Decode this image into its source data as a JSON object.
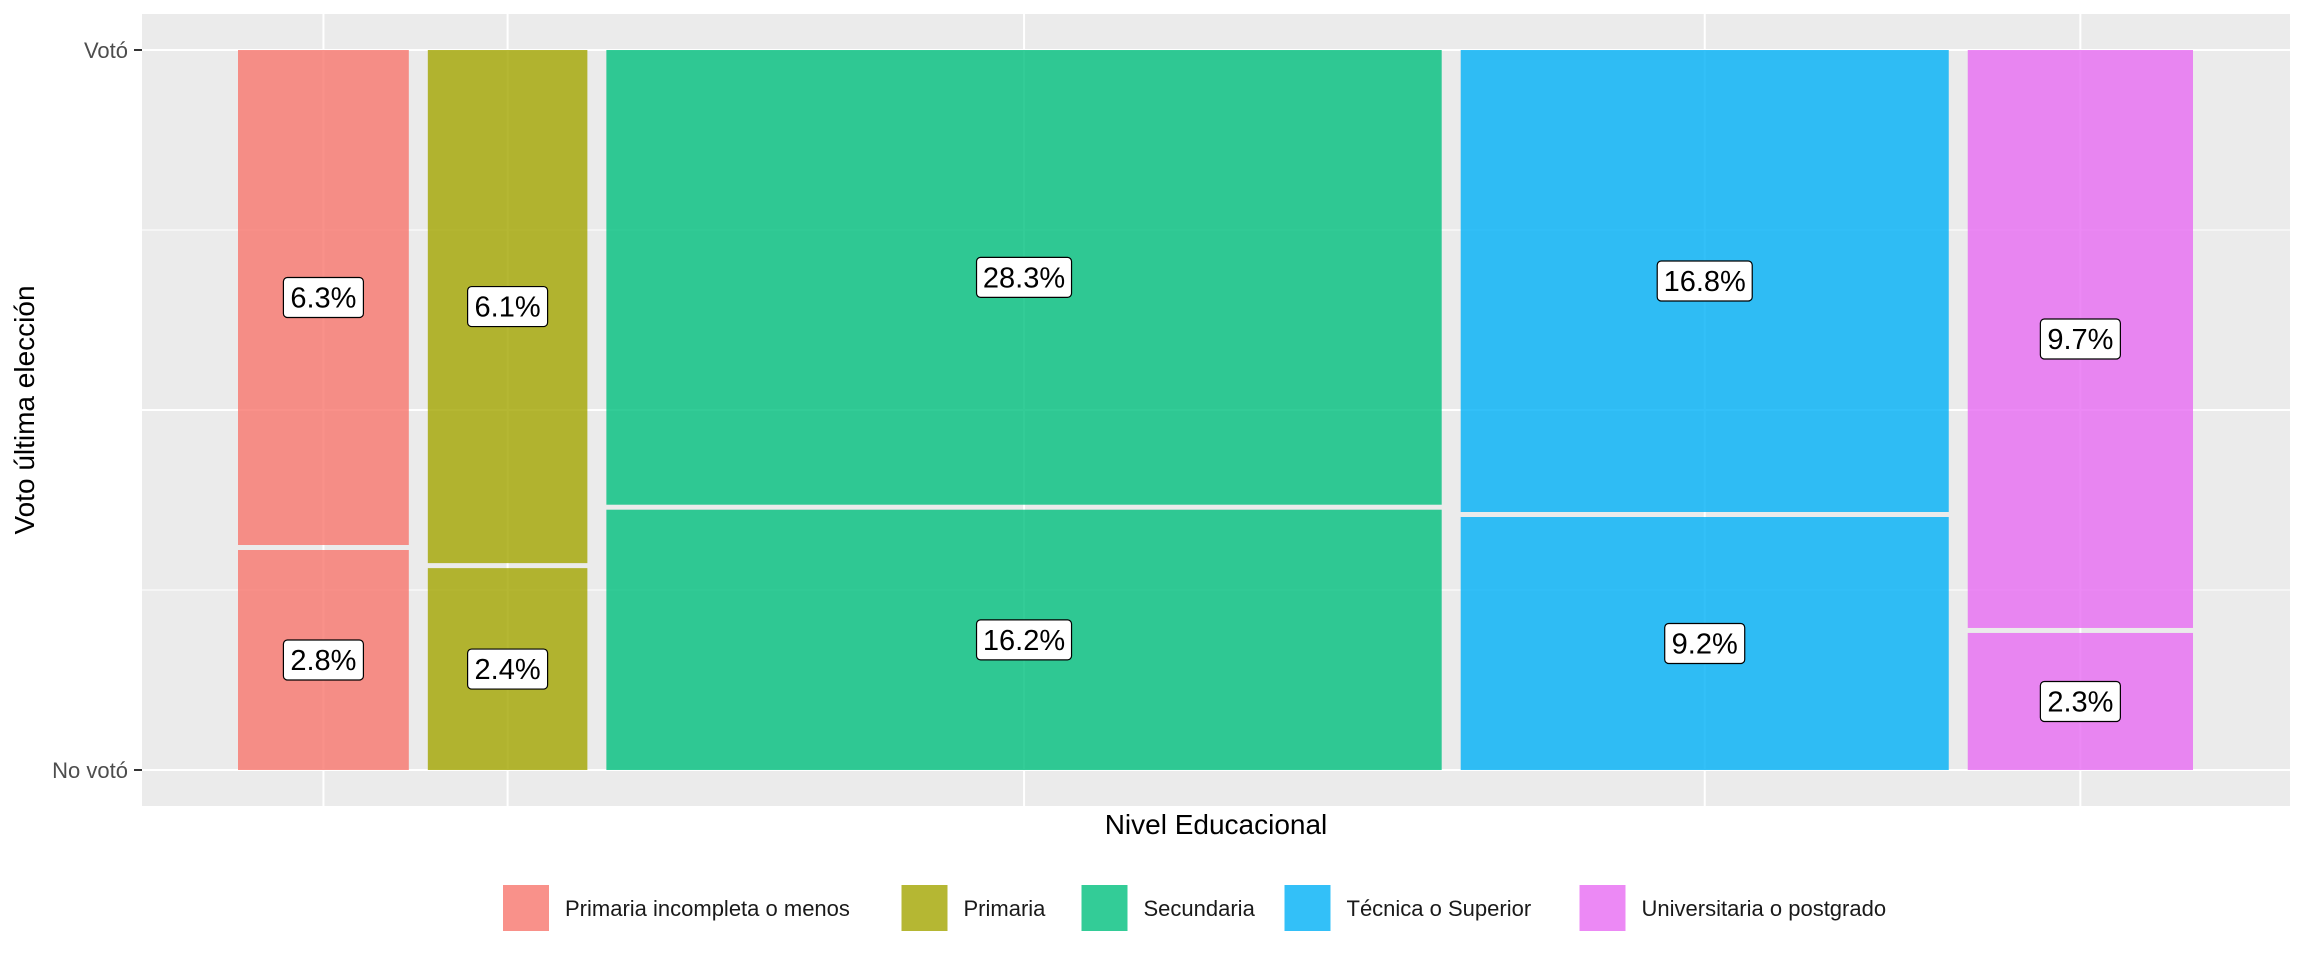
{
  "chart_data": {
    "type": "mosaic",
    "xlabel": "Nivel Educacional",
    "ylabel": "Voto última elección",
    "y_ticks": [
      "Votó",
      "No votó"
    ],
    "categories": [
      "Primaria incompleta o menos",
      "Primaria",
      "Secundaria",
      "Técnica o Superior",
      "Universitaria o postgrado"
    ],
    "colors": [
      "#F8766D",
      "#A3A500",
      "#00BF7D",
      "#00B0F6",
      "#E76BF3"
    ],
    "series": [
      {
        "name": "Votó",
        "values": [
          6.3,
          6.1,
          28.3,
          16.8,
          9.7
        ],
        "labels": [
          "6.3%",
          "6.1%",
          "28.3%",
          "16.8%",
          "9.7%"
        ]
      },
      {
        "name": "No votó",
        "values": [
          2.8,
          2.4,
          16.2,
          9.2,
          2.3
        ],
        "labels": [
          "2.8%",
          "2.4%",
          "16.2%",
          "9.2%",
          "2.3%"
        ]
      }
    ],
    "grid": true,
    "legend_position": "bottom"
  }
}
